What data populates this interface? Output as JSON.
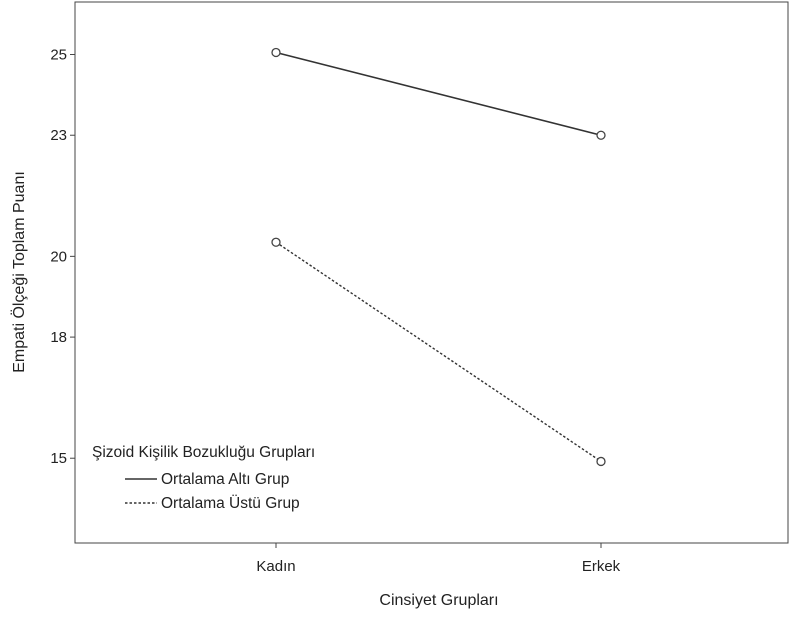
{
  "chart_data": {
    "type": "line",
    "xlabel": "Cinsiyet Grupları",
    "ylabel": "Empati Ölçeği Toplam Puanı",
    "categories": [
      "Kadın",
      "Erkek"
    ],
    "yticks": [
      15,
      18,
      20,
      23,
      25
    ],
    "ytick_labels": [
      "15",
      "18",
      "20",
      "23",
      "25"
    ],
    "ylim": [
      12.9,
      26.3
    ],
    "grid": false,
    "legend": {
      "title": "Şizoid Kişilik Bozukluğu Grupları",
      "position": "bottom-left"
    },
    "series": [
      {
        "name": "Ortalama Altı Grup",
        "values": [
          25.05,
          23.0
        ],
        "line_style": "solid",
        "color": "#333333"
      },
      {
        "name": "Ortalama Üstü Grup",
        "values": [
          20.35,
          14.92
        ],
        "line_style": "dotted",
        "color": "#333333"
      }
    ]
  }
}
